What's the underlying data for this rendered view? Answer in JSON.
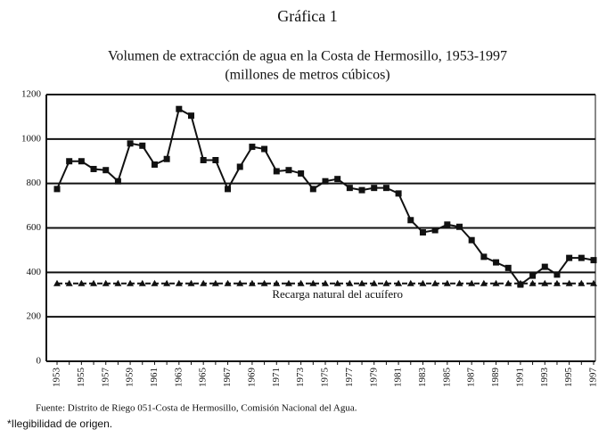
{
  "chart_data": {
    "type": "line",
    "title": "Gráfica 1",
    "subtitle": [
      "Volumen de extracción de agua en la Costa de Hermosillo, 1953-1997",
      "(millones de metros cúbicos)"
    ],
    "categories": [
      "1953",
      null,
      "1955",
      null,
      "1957",
      null,
      "1959",
      null,
      "1961",
      null,
      "1963",
      null,
      "1965",
      null,
      "1967",
      null,
      "1969",
      null,
      "1971",
      null,
      "1973",
      null,
      "1975",
      null,
      "1977",
      null,
      "1979",
      null,
      "1981",
      null,
      "1983",
      null,
      "1985",
      null,
      "1987",
      null,
      "1989",
      null,
      "1991",
      null,
      "1993",
      null,
      "1995",
      null,
      "1997"
    ],
    "series": [
      {
        "color": "#111111",
        "marker": "square",
        "values": [
          775,
          900,
          900,
          865,
          860,
          810,
          980,
          970,
          885,
          910,
          1135,
          1105,
          905,
          905,
          775,
          875,
          965,
          955,
          855,
          860,
          845,
          775,
          810,
          820,
          780,
          770,
          780,
          780,
          755,
          635,
          580,
          590,
          615,
          605,
          545,
          470,
          445,
          420,
          345,
          385,
          425,
          390,
          465,
          465,
          455
        ]
      },
      {
        "name": "Recarga natural del acuífero",
        "color": "#111111",
        "marker": "triangle",
        "dashed": true,
        "values": [
          350,
          350,
          350,
          350,
          350,
          350,
          350,
          350,
          350,
          350,
          350,
          350,
          350,
          350,
          350,
          350,
          350,
          350,
          350,
          350,
          350,
          350,
          350,
          350,
          350,
          350,
          350,
          350,
          350,
          350,
          350,
          350,
          350,
          350,
          350,
          350,
          350,
          350,
          350,
          350,
          350,
          350,
          350,
          350,
          350
        ]
      }
    ],
    "ylim": [
      0,
      1200
    ],
    "yticks": [
      0,
      200,
      400,
      600,
      800,
      1000,
      1200
    ],
    "grid": true,
    "source": "Fuente: Distrito de Riego 051-Costa de Hermosillo, Comisión Nacional del Agua."
  },
  "footnote": "*Ilegibilidad de origen."
}
